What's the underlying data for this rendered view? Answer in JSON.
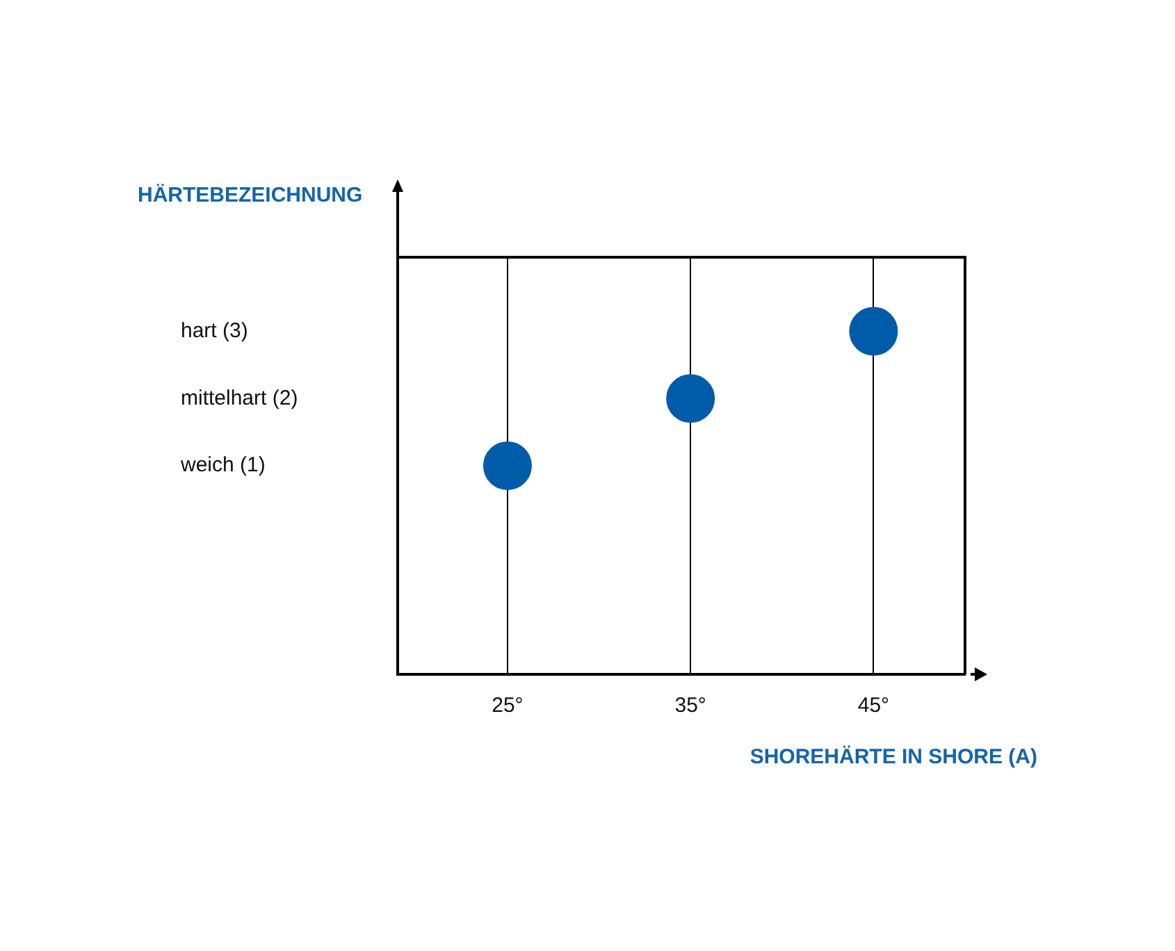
{
  "chart_data": {
    "type": "scatter",
    "xlabel": "SHOREHÄRTE IN SHORE (A)",
    "ylabel": "HÄRTEBEZEICHNUNG",
    "x": [
      25,
      35,
      45
    ],
    "series": [
      {
        "color": "#005ca9",
        "values": [
          1,
          2,
          3
        ]
      }
    ],
    "xlim": [
      19,
      50
    ],
    "xticks": [
      {
        "value": 25,
        "label": "25°"
      },
      {
        "value": 35,
        "label": "35°"
      },
      {
        "value": 45,
        "label": "45°"
      }
    ],
    "ylim": [
      -2.1,
      4.1
    ],
    "yticks": [
      {
        "value": 1,
        "label": "weich (1)"
      },
      {
        "value": 2,
        "label": "mittelhart (2)"
      },
      {
        "value": 3,
        "label": "hart (3)"
      }
    ],
    "grid": "x",
    "marker": "circle"
  }
}
